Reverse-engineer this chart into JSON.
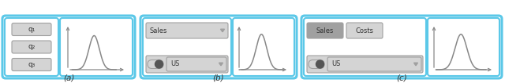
{
  "fig_width": 6.4,
  "fig_height": 1.06,
  "dpi": 100,
  "bg_color": "#ffffff",
  "cyan": "#5bc8e8",
  "lg": "#d4d4d4",
  "mg": "#a0a0a0",
  "q_labels": [
    "q₁",
    "q₂",
    "q₃"
  ],
  "sales_text": "Sales",
  "costs_text": "Costs",
  "us_text": "US",
  "panel_labels": [
    "(a)",
    "(b)",
    "(c)"
  ],
  "panel_a": {
    "ox": 3,
    "oy": 6,
    "ow": 168,
    "oh": 80
  },
  "panel_b": {
    "ox": 178,
    "oy": 6,
    "ow": 198,
    "oh": 80
  },
  "panel_c": {
    "ox": 382,
    "oy": 6,
    "ow": 254,
    "oh": 80
  }
}
